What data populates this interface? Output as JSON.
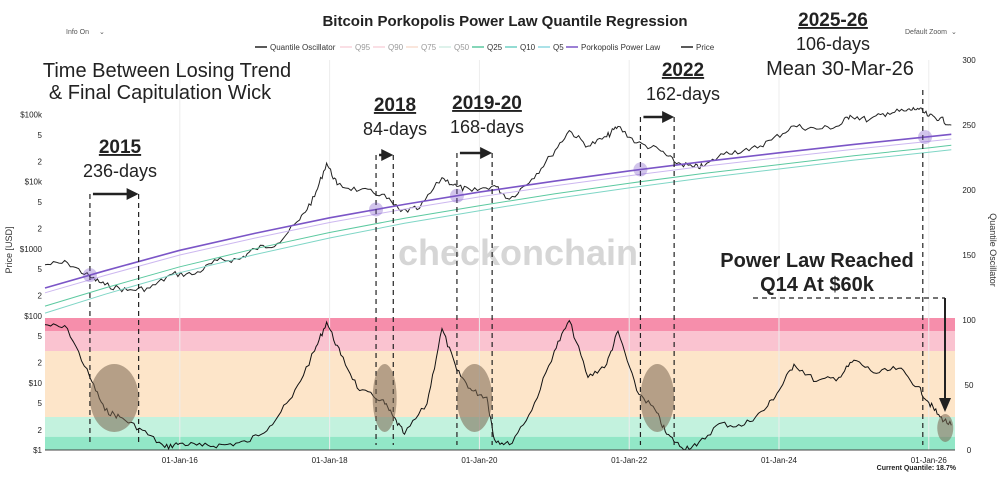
{
  "header": {
    "title": "Bitcoin Porkopolis Power Law Quantile Regression",
    "info_button": "Info On",
    "zoom_button": "Default Zoom",
    "dropdown_icon": "chevron-down-icon"
  },
  "legend": [
    {
      "label": "Quantile Oscillator",
      "color": "#222222",
      "dim": false
    },
    {
      "label": "Q95",
      "color": "#f2b8c6",
      "dim": true
    },
    {
      "label": "Q90",
      "color": "#f2b8c6",
      "dim": true
    },
    {
      "label": "Q75",
      "color": "#f5c9b0",
      "dim": true
    },
    {
      "label": "Q50",
      "color": "#b5e3d3",
      "dim": true
    },
    {
      "label": "Q25",
      "color": "#5cc9a0",
      "dim": false
    },
    {
      "label": "Q10",
      "color": "#6fd0c4",
      "dim": false
    },
    {
      "label": "Q5",
      "color": "#8fd8e0",
      "dim": false
    },
    {
      "label": "Porkopolis Power Law",
      "color": "#7b55c7",
      "dim": false
    },
    {
      "label": "Price",
      "color": "#222222",
      "dim": false
    }
  ],
  "watermark": "checkonchain",
  "footer": {
    "current_quantile": "Current Quantile: 18.7%"
  },
  "colors": {
    "power_law": "#7b55c7",
    "q25": "#5cc9a0",
    "q10": "#7fd6c6",
    "band_pink_dark": "#f47a9c",
    "band_pink": "#f9b9c8",
    "band_peach": "#fde0bf",
    "band_green_light": "#b8f0d8",
    "band_green": "#7fe3bd",
    "capitulation_ellipse": "#7a6650"
  },
  "annotations": {
    "top_left": [
      "Time Between Losing Trend",
      "& Final Capitulation Wick"
    ],
    "events": [
      {
        "year": "2015",
        "days": "236-days"
      },
      {
        "year": "2018",
        "days": "84-days"
      },
      {
        "year": "2019-20",
        "days": "168-days"
      },
      {
        "year": "2022",
        "days": "162-days"
      },
      {
        "year": "2025-26",
        "days": "106-days",
        "extra": "Mean 30-Mar-26"
      }
    ],
    "power_law_note": [
      "Power Law Reached",
      "Q14 At $60k"
    ]
  },
  "chart_data": {
    "type": "line",
    "title": "Bitcoin Porkopolis Power Law Quantile Regression",
    "xlabel": "",
    "ylabel_left": "Price [USD]",
    "ylabel_right": "Quantile Oscillator",
    "x_ticks": [
      "01-Jan-16",
      "01-Jan-18",
      "01-Jan-20",
      "01-Jan-22",
      "01-Jan-24",
      "01-Jan-26"
    ],
    "x_tick_years": [
      2016,
      2018,
      2020,
      2022,
      2024,
      2026
    ],
    "x_range": [
      2014.2,
      2026.35
    ],
    "y_log_ticks": [
      {
        "label": "$1",
        "v": 1
      },
      {
        "label": "2",
        "v": 2
      },
      {
        "label": "5",
        "v": 5
      },
      {
        "label": "$10",
        "v": 10
      },
      {
        "label": "2",
        "v": 20
      },
      {
        "label": "5",
        "v": 50
      },
      {
        "label": "$100",
        "v": 100
      },
      {
        "label": "2",
        "v": 200
      },
      {
        "label": "5",
        "v": 500
      },
      {
        "label": "$1000",
        "v": 1000
      },
      {
        "label": "2",
        "v": 2000
      },
      {
        "label": "5",
        "v": 5000
      },
      {
        "label": "$10k",
        "v": 10000
      },
      {
        "label": "2",
        "v": 20000
      },
      {
        "label": "5",
        "v": 50000
      },
      {
        "label": "$100k",
        "v": 100000
      }
    ],
    "y_log_range": [
      1,
      250000
    ],
    "y_right_ticks": [
      0,
      50,
      100,
      150,
      200,
      250,
      300
    ],
    "y_right_range": [
      0,
      300
    ],
    "oscillator_bands": [
      {
        "from": 90,
        "to": 100,
        "color_key": "band_pink_dark"
      },
      {
        "from": 75,
        "to": 90,
        "color_key": "band_pink"
      },
      {
        "from": 25,
        "to": 75,
        "color_key": "band_peach"
      },
      {
        "from": 10,
        "to": 25,
        "color_key": "band_green_light"
      },
      {
        "from": 0,
        "to": 10,
        "color_key": "band_green"
      }
    ],
    "series": [
      {
        "name": "Price",
        "x": [
          2014.2,
          2014.5,
          2014.8,
          2015.0,
          2015.3,
          2015.6,
          2015.9,
          2016.2,
          2016.5,
          2016.8,
          2017.0,
          2017.3,
          2017.6,
          2017.8,
          2017.96,
          2018.1,
          2018.4,
          2018.7,
          2018.95,
          2019.2,
          2019.5,
          2019.7,
          2019.9,
          2020.2,
          2020.4,
          2020.7,
          2020.95,
          2021.2,
          2021.45,
          2021.7,
          2021.85,
          2022.1,
          2022.4,
          2022.6,
          2022.85,
          2023.0,
          2023.3,
          2023.6,
          2023.9,
          2024.2,
          2024.5,
          2024.8,
          2024.95,
          2025.2,
          2025.45,
          2025.7,
          2025.85,
          2026.0,
          2026.15,
          2026.3
        ],
        "values": [
          580,
          620,
          380,
          290,
          240,
          260,
          420,
          420,
          670,
          700,
          1000,
          1200,
          2700,
          6000,
          19000,
          9000,
          7500,
          6500,
          3600,
          4000,
          11500,
          8500,
          7200,
          8800,
          5500,
          11000,
          24000,
          58000,
          34000,
          47000,
          67000,
          38000,
          30000,
          20000,
          16500,
          17000,
          28000,
          29000,
          42000,
          68000,
          61000,
          68000,
          98000,
          83000,
          107000,
          114000,
          124000,
          95000,
          88000,
          70000
        ]
      },
      {
        "name": "Porkopolis Power Law",
        "x": [
          2014.2,
          2015.0,
          2016.0,
          2017.0,
          2018.0,
          2019.0,
          2020.0,
          2021.0,
          2022.0,
          2023.0,
          2024.0,
          2025.0,
          2026.0,
          2026.3
        ],
        "values": [
          260,
          470,
          950,
          1700,
          2900,
          4600,
          7000,
          10200,
          14500,
          20000,
          27000,
          36000,
          47000,
          51000
        ]
      },
      {
        "name": "Q25",
        "x": [
          2014.2,
          2015.0,
          2016.0,
          2017.0,
          2018.0,
          2019.0,
          2020.0,
          2021.0,
          2022.0,
          2023.0,
          2024.0,
          2025.0,
          2026.0,
          2026.3
        ],
        "values": [
          140,
          260,
          540,
          1000,
          1750,
          2850,
          4400,
          6600,
          9500,
          13300,
          18000,
          24500,
          32000,
          35000
        ]
      },
      {
        "name": "Q10",
        "x": [
          2014.2,
          2015.0,
          2016.0,
          2017.0,
          2018.0,
          2019.0,
          2020.0,
          2021.0,
          2022.0,
          2023.0,
          2024.0,
          2025.0,
          2026.0,
          2026.3
        ],
        "values": [
          110,
          210,
          440,
          820,
          1450,
          2400,
          3700,
          5600,
          8100,
          11400,
          15500,
          21000,
          27500,
          30000
        ]
      },
      {
        "name": "Quantile Oscillator",
        "x": [
          2014.2,
          2014.5,
          2014.8,
          2015.0,
          2015.2,
          2015.5,
          2015.8,
          2016.0,
          2016.3,
          2016.6,
          2016.9,
          2017.2,
          2017.5,
          2017.8,
          2017.96,
          2018.15,
          2018.4,
          2018.7,
          2018.85,
          2019.0,
          2019.3,
          2019.5,
          2019.7,
          2019.9,
          2020.1,
          2020.2,
          2020.4,
          2020.7,
          2021.0,
          2021.2,
          2021.45,
          2021.7,
          2021.85,
          2022.1,
          2022.35,
          2022.5,
          2022.7,
          2022.9,
          2023.2,
          2023.5,
          2023.8,
          2024.0,
          2024.2,
          2024.5,
          2024.8,
          2025.0,
          2025.3,
          2025.6,
          2025.85,
          2026.0,
          2026.15,
          2026.3
        ],
        "values": [
          95,
          92,
          55,
          30,
          25,
          15,
          2,
          5,
          3,
          4,
          6,
          18,
          40,
          75,
          97,
          72,
          45,
          38,
          25,
          12,
          35,
          92,
          60,
          45,
          40,
          8,
          4,
          30,
          75,
          98,
          55,
          65,
          90,
          45,
          30,
          12,
          2,
          3,
          20,
          18,
          30,
          45,
          65,
          52,
          55,
          68,
          58,
          62,
          48,
          36,
          25,
          18.7
        ]
      }
    ],
    "capitulation_windows": [
      {
        "label": "2015",
        "start": 2014.8,
        "end": 2015.45,
        "days": 236
      },
      {
        "label": "2018",
        "start": 2018.62,
        "end": 2018.85,
        "days": 84
      },
      {
        "label": "2019-20",
        "start": 2019.7,
        "end": 2020.17,
        "days": 168
      },
      {
        "label": "2022",
        "start": 2022.15,
        "end": 2022.6,
        "days": 162
      },
      {
        "label": "2025-26",
        "start": 2025.92,
        "end": 2026.21,
        "days": 106
      }
    ],
    "current_quantile_pct": 18.7
  }
}
